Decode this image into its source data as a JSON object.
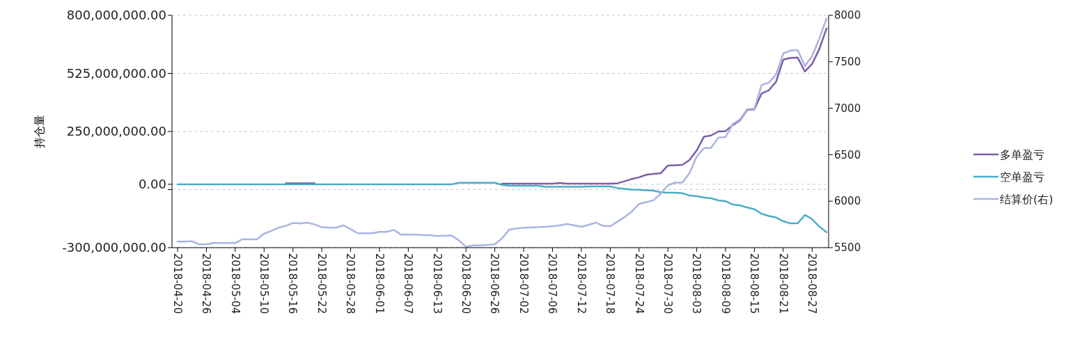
{
  "chart_data": {
    "type": "line",
    "ylabel": "持仓量",
    "categories": [
      "2018-04-20",
      null,
      null,
      null,
      "2018-04-26",
      null,
      null,
      null,
      "2018-05-04",
      null,
      null,
      null,
      "2018-05-10",
      null,
      null,
      null,
      "2018-05-16",
      null,
      null,
      null,
      "2018-05-22",
      null,
      null,
      null,
      "2018-05-28",
      null,
      null,
      null,
      "2018-06-01",
      null,
      null,
      null,
      "2018-06-07",
      null,
      null,
      null,
      "2018-06-13",
      null,
      null,
      null,
      "2018-06-20",
      null,
      null,
      null,
      "2018-06-26",
      null,
      null,
      null,
      "2018-07-02",
      null,
      null,
      null,
      "2018-07-06",
      null,
      null,
      null,
      "2018-07-12",
      null,
      null,
      null,
      "2018-07-18",
      null,
      null,
      null,
      "2018-07-24",
      null,
      null,
      null,
      "2018-07-30",
      null,
      null,
      null,
      "2018-08-03",
      null,
      null,
      null,
      "2018-08-09",
      null,
      null,
      null,
      "2018-08-15",
      null,
      null,
      null,
      "2018-08-21",
      null,
      null,
      null,
      "2018-08-27",
      null,
      null
    ],
    "series": [
      {
        "name": "多单盈亏",
        "color": "#7b5ea7",
        "values": [
          null,
          null,
          null,
          null,
          null,
          null,
          null,
          null,
          null,
          null,
          null,
          null,
          null,
          null,
          null,
          5000000,
          5000000,
          5000000,
          5000000,
          5000000,
          null,
          null,
          null,
          null,
          null,
          null,
          null,
          null,
          null,
          null,
          null,
          null,
          null,
          null,
          null,
          null,
          null,
          null,
          null,
          null,
          null,
          null,
          null,
          null,
          null,
          3000000,
          3000000,
          3000000,
          3000000,
          3000000,
          3000000,
          3000000,
          3000000,
          6000000,
          3000000,
          3000000,
          3000000,
          3000000,
          3000000,
          3000000,
          3000000,
          5000000,
          14000000,
          25000000,
          33000000,
          45000000,
          49000000,
          52000000,
          89000000,
          90000000,
          92000000,
          115000000,
          160000000,
          225000000,
          231000000,
          250000000,
          252000000,
          280000000,
          303000000,
          352000000,
          355000000,
          430000000,
          445000000,
          485000000,
          590000000,
          598000000,
          600000000,
          534000000,
          570000000,
          640000000,
          738000000
        ]
      },
      {
        "name": "空单盈亏",
        "color": "#4bacc6",
        "values": [
          0,
          0,
          0,
          0,
          0,
          0,
          0,
          0,
          0,
          0,
          0,
          0,
          0,
          0,
          0,
          0,
          0,
          0,
          0,
          0,
          0,
          0,
          0,
          0,
          0,
          0,
          0,
          0,
          0,
          0,
          0,
          0,
          0,
          0,
          0,
          0,
          0,
          0,
          0,
          7000000,
          7000000,
          7000000,
          7000000,
          7000000,
          7000000,
          -3000000,
          -7000000,
          -7000000,
          -7000000,
          -7000000,
          -7000000,
          -12000000,
          -12000000,
          -12000000,
          -12000000,
          -12000000,
          -12000000,
          -10000000,
          -10000000,
          -10000000,
          -10000000,
          -18000000,
          -22000000,
          -25000000,
          -26000000,
          -28000000,
          -30000000,
          -38000000,
          -40000000,
          -40000000,
          -42000000,
          -53000000,
          -56000000,
          -63000000,
          -66000000,
          -76000000,
          -80000000,
          -96000000,
          -100000000,
          -110000000,
          -118000000,
          -140000000,
          -150000000,
          -157000000,
          -175000000,
          -185000000,
          -185000000,
          -145000000,
          -165000000,
          -200000000,
          -227000000
        ]
      },
      {
        "name": "结算价(右)",
        "color": "#a9b4e0",
        "axis": "y2",
        "values": [
          5565,
          5565,
          5570,
          5535,
          5535,
          5550,
          5550,
          5550,
          5550,
          5590,
          5590,
          5590,
          5650,
          5680,
          5715,
          5735,
          5765,
          5760,
          5770,
          5750,
          5720,
          5715,
          5715,
          5740,
          5700,
          5655,
          5655,
          5655,
          5670,
          5670,
          5690,
          5640,
          5640,
          5640,
          5635,
          5635,
          5625,
          5630,
          5630,
          5580,
          5510,
          5525,
          5525,
          5530,
          5535,
          5600,
          5695,
          5705,
          5715,
          5717,
          5720,
          5725,
          5730,
          5740,
          5755,
          5740,
          5725,
          5745,
          5770,
          5735,
          5730,
          5780,
          5830,
          5890,
          5970,
          5990,
          6010,
          6080,
          6170,
          6200,
          6200,
          6300,
          6480,
          6570,
          6575,
          6683,
          6690,
          6830,
          6880,
          6990,
          6995,
          7250,
          7275,
          7360,
          7590,
          7620,
          7625,
          7455,
          7560,
          7750,
          7965
        ]
      }
    ],
    "ylim": [
      -300000000,
      800000000
    ],
    "yticks": [
      {
        "value": -300000000,
        "label": "-300,000,000.00"
      },
      {
        "value": -25000000,
        "label": null
      },
      {
        "value": 0,
        "label": "0.00"
      },
      {
        "value": 250000000,
        "label": "250,000,000.00"
      },
      {
        "value": 525000000,
        "label": "525,000,000.00"
      },
      {
        "value": 800000000,
        "label": "800,000,000.00"
      }
    ],
    "y2lim": [
      5500,
      8000
    ],
    "y2ticks": [
      5500,
      6000,
      6500,
      7000,
      7500,
      8000
    ],
    "grid": "y",
    "legend": "right",
    "line_style": "solid",
    "marker": "none"
  }
}
